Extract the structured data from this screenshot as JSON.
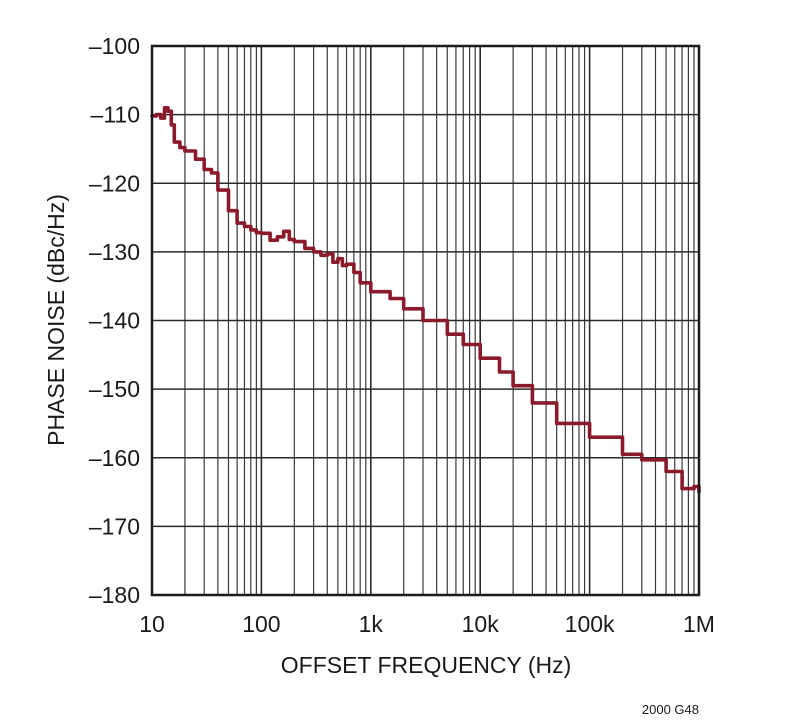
{
  "chart_data": {
    "type": "line",
    "title": "",
    "xlabel": "OFFSET FREQUENCY (Hz)",
    "ylabel": "PHASE NOISE (dBc/Hz)",
    "xscale": "log",
    "xlim": [
      10,
      1000000
    ],
    "ylim": [
      -180,
      -100
    ],
    "grid": true,
    "legend": "none",
    "x_tick_values": [
      10,
      100,
      1000,
      10000,
      100000,
      1000000
    ],
    "x_tick_labels": [
      "10",
      "100",
      "1k",
      "10k",
      "100k",
      "1M"
    ],
    "y_ticks": [
      -100,
      -110,
      -120,
      -130,
      -140,
      -150,
      -160,
      -170,
      -180
    ],
    "y_tick_labels": [
      "–100",
      "–110",
      "–120",
      "–130",
      "–140",
      "–150",
      "–160",
      "–170",
      "–180"
    ],
    "series": [
      {
        "name": "",
        "color": "#8b1a2b",
        "points": [
          [
            10,
            -110.2
          ],
          [
            11,
            -110.0
          ],
          [
            12,
            -110.5
          ],
          [
            13,
            -109.0
          ],
          [
            14,
            -109.5
          ],
          [
            15,
            -111.5
          ],
          [
            16,
            -114.0
          ],
          [
            18,
            -114.8
          ],
          [
            20,
            -115.3
          ],
          [
            25,
            -116.5
          ],
          [
            30,
            -118.0
          ],
          [
            35,
            -118.5
          ],
          [
            40,
            -121.0
          ],
          [
            50,
            -124.0
          ],
          [
            60,
            -125.8
          ],
          [
            70,
            -126.3
          ],
          [
            80,
            -126.8
          ],
          [
            90,
            -127.2
          ],
          [
            100,
            -127.3
          ],
          [
            120,
            -128.3
          ],
          [
            140,
            -127.8
          ],
          [
            160,
            -127.0
          ],
          [
            180,
            -128.2
          ],
          [
            200,
            -128.5
          ],
          [
            250,
            -129.5
          ],
          [
            300,
            -130.0
          ],
          [
            350,
            -130.5
          ],
          [
            400,
            -130.3
          ],
          [
            450,
            -131.5
          ],
          [
            500,
            -131.0
          ],
          [
            550,
            -132.0
          ],
          [
            600,
            -131.8
          ],
          [
            700,
            -133.0
          ],
          [
            800,
            -134.5
          ],
          [
            1000,
            -135.8
          ],
          [
            1500,
            -136.8
          ],
          [
            2000,
            -138.3
          ],
          [
            3000,
            -140.0
          ],
          [
            5000,
            -142.0
          ],
          [
            7000,
            -143.5
          ],
          [
            10000,
            -145.5
          ],
          [
            15000,
            -147.5
          ],
          [
            20000,
            -149.5
          ],
          [
            30000,
            -152.0
          ],
          [
            50000,
            -155.0
          ],
          [
            100000,
            -157.0
          ],
          [
            200000,
            -159.5
          ],
          [
            300000,
            -160.3
          ],
          [
            500000,
            -162.0
          ],
          [
            700000,
            -164.5
          ],
          [
            900000,
            -164.2
          ],
          [
            1000000,
            -165.0
          ]
        ]
      }
    ]
  },
  "footnote": "2000 G48"
}
